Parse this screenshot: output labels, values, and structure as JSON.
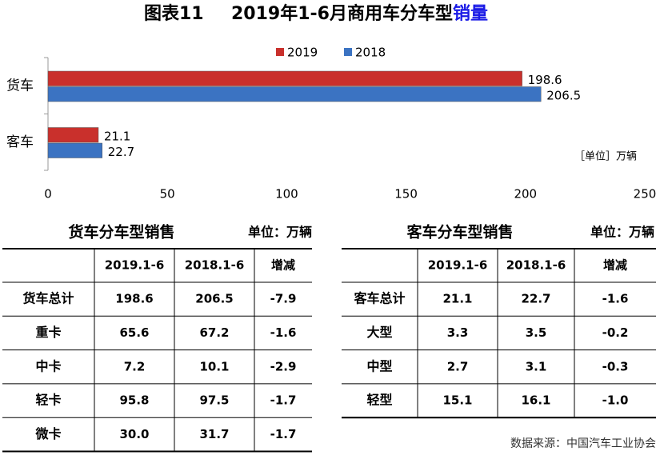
{
  "figure_label": "图表11",
  "title": "2019年1-6月商用车分车型",
  "title_highlight": "销量",
  "chart_data": {
    "type": "hbar",
    "categories": [
      "货车",
      "客车"
    ],
    "series": [
      {
        "name": "2019",
        "color": "#c9302c",
        "values": [
          198.6,
          21.1
        ]
      },
      {
        "name": "2018",
        "color": "#3b73c2",
        "values": [
          206.5,
          22.7
        ]
      }
    ],
    "xlim": [
      0,
      250
    ],
    "xticks": [
      0,
      50,
      100,
      150,
      200,
      250
    ],
    "unit_note": "［单位］万辆",
    "legend": "top"
  },
  "truck_table": {
    "title": "货车分车型销售",
    "unit": "单位：万辆",
    "columns": [
      "2019.1-6",
      "2018.1-6",
      "增减"
    ],
    "rows": [
      [
        "货车总计",
        "198.6",
        "206.5",
        "-7.9"
      ],
      [
        "重卡",
        "65.6",
        "67.2",
        "-1.6"
      ],
      [
        "中卡",
        "7.2",
        "10.1",
        "-2.9"
      ],
      [
        "轻卡",
        "95.8",
        "97.5",
        "-1.7"
      ],
      [
        "微卡",
        "30.0",
        "31.7",
        "-1.7"
      ]
    ]
  },
  "bus_table": {
    "title": "客车分车型销售",
    "unit": "单位：万辆",
    "columns": [
      "2019.1-6",
      "2018.1-6",
      "增减"
    ],
    "rows": [
      [
        "客车总计",
        "21.1",
        "22.7",
        "-1.6"
      ],
      [
        "大型",
        "3.3",
        "3.5",
        "-0.2"
      ],
      [
        "中型",
        "2.7",
        "3.1",
        "-0.3"
      ],
      [
        "轻型",
        "15.1",
        "16.1",
        "-1.0"
      ]
    ]
  },
  "source": "数据来源：中国汽车工业协会"
}
